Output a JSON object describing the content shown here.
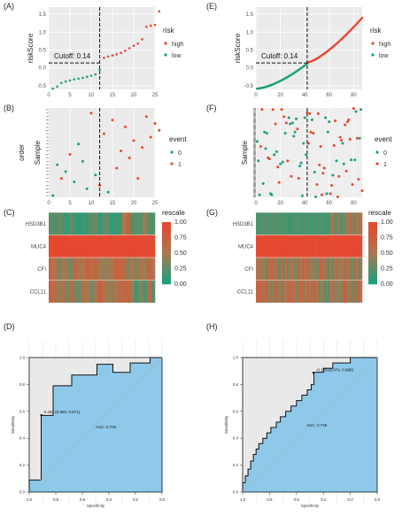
{
  "figure": {
    "panel_labels": [
      "(A)",
      "(B)",
      "(C)",
      "(D)",
      "(E)",
      "(F)",
      "(G)",
      "(H)"
    ],
    "legend_risk": {
      "title": "risk",
      "items": [
        "high",
        "low"
      ]
    },
    "legend_event": {
      "title": "event",
      "items": [
        "0",
        "1"
      ]
    },
    "legend_rescale": {
      "title": "rescale",
      "ticks": [
        "1.00",
        "0.75",
        "0.50",
        "0.25",
        "0.00"
      ]
    },
    "colors": {
      "high": "#E8462F",
      "low": "#1AA07C",
      "panel_bg": "#EBEBEB",
      "roc_fill": "#8EC9EA",
      "roc_bg": "#E9E9E9"
    }
  },
  "chart_data": [
    {
      "panel": "(A)",
      "type": "scatter",
      "ylabel": "riskScore",
      "xticks": [
        "0",
        "5",
        "10",
        "15",
        "20",
        "25"
      ],
      "yticks": [
        "-0.5",
        "0.0",
        "0.5",
        "1.0",
        "1.5"
      ],
      "xlim": [
        0,
        25
      ],
      "ylim": [
        -0.6,
        1.7
      ],
      "cutoff_label": "Cutoff: 0.14",
      "cutoff_x": 12,
      "cutoff_y": 0.14,
      "series": [
        {
          "name": "low",
          "values": [
            -0.58,
            -0.52,
            -0.42,
            -0.38,
            -0.35,
            -0.32,
            -0.3,
            -0.28,
            -0.25,
            -0.22,
            -0.18,
            -0.05
          ]
        },
        {
          "name": "high",
          "values": [
            0.28,
            0.32,
            0.35,
            0.38,
            0.42,
            0.48,
            0.55,
            0.62,
            0.68,
            0.8,
            1.15,
            1.18,
            1.2,
            1.58
          ]
        }
      ]
    },
    {
      "panel": "(E)",
      "type": "scatter",
      "ylabel": "riskScore",
      "xticks": [
        "0",
        "20",
        "40",
        "60",
        "80"
      ],
      "yticks": [
        "-0.5",
        "0.0",
        "0.5",
        "1.0",
        "1.5"
      ],
      "xlim": [
        0,
        87
      ],
      "ylim": [
        -0.6,
        1.7
      ],
      "cutoff_label": "Cutoff: 0.14",
      "cutoff_x": 42,
      "cutoff_y": 0.14,
      "series": [
        {
          "name": "low",
          "range": [
            -0.58,
            0.12
          ],
          "count": 42
        },
        {
          "name": "high",
          "range": [
            0.16,
            1.4
          ],
          "count": 45
        }
      ]
    },
    {
      "panel": "(B)",
      "type": "scatter",
      "xlabel": "",
      "ylabel": "Sample",
      "ylabel2": "order",
      "xticks": [
        "0",
        "5",
        "10",
        "15",
        "20",
        "25"
      ],
      "xlim": [
        0,
        25
      ],
      "cutoff_x": 12,
      "points": [
        [
          1,
          1,
          0
        ],
        [
          2,
          10,
          0
        ],
        [
          3,
          6,
          1
        ],
        [
          4,
          8,
          0
        ],
        [
          5,
          13,
          1
        ],
        [
          6,
          5,
          0
        ],
        [
          7,
          16,
          0
        ],
        [
          8,
          11,
          0
        ],
        [
          9,
          3,
          0
        ],
        [
          10,
          25,
          1
        ],
        [
          11,
          7,
          0
        ],
        [
          12,
          4,
          1
        ],
        [
          13,
          19,
          1
        ],
        [
          14,
          2,
          0
        ],
        [
          15,
          23,
          1
        ],
        [
          16,
          9,
          1
        ],
        [
          17,
          14,
          1
        ],
        [
          18,
          21,
          1
        ],
        [
          19,
          12,
          1
        ],
        [
          20,
          17,
          1
        ],
        [
          21,
          6,
          1
        ],
        [
          22,
          15,
          1
        ],
        [
          23,
          24,
          1
        ],
        [
          24,
          18,
          1
        ],
        [
          25,
          22,
          1
        ],
        [
          26,
          20,
          1
        ]
      ]
    },
    {
      "panel": "(F)",
      "type": "scatter",
      "xlabel": "",
      "ylabel": "Sample",
      "xticks": [
        "0",
        "20",
        "40",
        "60",
        "80"
      ],
      "xlim": [
        0,
        87
      ],
      "cutoff_x": 42,
      "n": 87
    },
    {
      "panel": "(C)",
      "type": "heatmap",
      "rows": [
        "HSD3B1",
        "MUC4",
        "CFI",
        "CCL11"
      ],
      "n_cols": 26
    },
    {
      "panel": "(G)",
      "type": "heatmap",
      "rows": [
        "HSD3B1",
        "MUC4",
        "CFI",
        "CCL11"
      ],
      "n_cols": 87
    },
    {
      "panel": "(D)",
      "type": "area",
      "xlabel": "Specificity",
      "ylabel": "Sensitivity",
      "xticks": [
        "1.0",
        "0.8",
        "0.6",
        "0.4",
        "0.2",
        "0.0"
      ],
      "yticks": [
        "0.0",
        "0.2",
        "0.4",
        "0.6",
        "0.8",
        "1.0"
      ],
      "auc_label": "AUC: 0.734",
      "point_label": "0.432 (0.909, 0.571)",
      "roc": [
        [
          1.0,
          0.0
        ],
        [
          1.0,
          0.09
        ],
        [
          0.91,
          0.09
        ],
        [
          0.91,
          0.26
        ],
        [
          0.91,
          0.57
        ],
        [
          0.82,
          0.57
        ],
        [
          0.82,
          0.79
        ],
        [
          0.68,
          0.79
        ],
        [
          0.68,
          0.87
        ],
        [
          0.49,
          0.87
        ],
        [
          0.49,
          0.95
        ],
        [
          0.37,
          0.95
        ],
        [
          0.37,
          0.89
        ],
        [
          0.24,
          0.89
        ],
        [
          0.24,
          0.96
        ],
        [
          0.09,
          0.96
        ],
        [
          0.09,
          1.0
        ],
        [
          0.0,
          1.0
        ]
      ]
    },
    {
      "panel": "(H)",
      "type": "area",
      "xlabel": "Specificity",
      "ylabel": "Sensitivity",
      "xticks": [
        "1.0",
        "0.8",
        "0.6",
        "0.4",
        "0.2",
        "0.0"
      ],
      "yticks": [
        "0.0",
        "0.2",
        "0.4",
        "0.6",
        "0.8",
        "1.0"
      ],
      "auc_label": "AUC: 0.746",
      "point_label": "-0.159 (0.474, 0.886)",
      "roc": [
        [
          1.0,
          0.0
        ],
        [
          1.0,
          0.07
        ],
        [
          0.98,
          0.07
        ],
        [
          0.98,
          0.12
        ],
        [
          0.96,
          0.12
        ],
        [
          0.96,
          0.17
        ],
        [
          0.94,
          0.17
        ],
        [
          0.94,
          0.23
        ],
        [
          0.92,
          0.23
        ],
        [
          0.92,
          0.28
        ],
        [
          0.9,
          0.28
        ],
        [
          0.9,
          0.32
        ],
        [
          0.88,
          0.32
        ],
        [
          0.88,
          0.36
        ],
        [
          0.85,
          0.36
        ],
        [
          0.85,
          0.4
        ],
        [
          0.82,
          0.4
        ],
        [
          0.82,
          0.44
        ],
        [
          0.79,
          0.44
        ],
        [
          0.79,
          0.48
        ],
        [
          0.75,
          0.48
        ],
        [
          0.75,
          0.52
        ],
        [
          0.72,
          0.52
        ],
        [
          0.72,
          0.56
        ],
        [
          0.68,
          0.56
        ],
        [
          0.68,
          0.6
        ],
        [
          0.64,
          0.6
        ],
        [
          0.64,
          0.64
        ],
        [
          0.6,
          0.64
        ],
        [
          0.6,
          0.68
        ],
        [
          0.56,
          0.68
        ],
        [
          0.56,
          0.72
        ],
        [
          0.52,
          0.72
        ],
        [
          0.52,
          0.76
        ],
        [
          0.49,
          0.76
        ],
        [
          0.49,
          0.8
        ],
        [
          0.47,
          0.8
        ],
        [
          0.47,
          0.89
        ],
        [
          0.4,
          0.89
        ],
        [
          0.4,
          0.92
        ],
        [
          0.33,
          0.92
        ],
        [
          0.33,
          0.96
        ],
        [
          0.2,
          0.96
        ],
        [
          0.2,
          1.0
        ],
        [
          0.0,
          1.0
        ]
      ]
    }
  ]
}
